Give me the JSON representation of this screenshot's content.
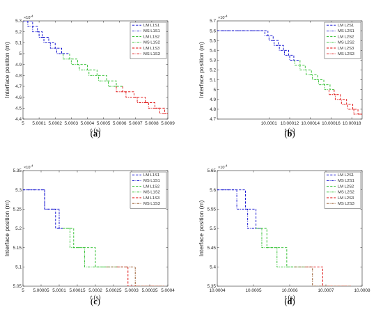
{
  "chart_data": [
    {
      "type": "line",
      "caption_letter": "a",
      "ylabel": "Interface position (m)",
      "xlabel_var": "t",
      "xlabel_unit": " (s)",
      "y_exponent": "-4",
      "xlim": [
        5.0,
        5.0009
      ],
      "ylim": [
        4.4,
        5.3
      ],
      "xticks": [
        5,
        5.0001,
        5.0002,
        5.0003,
        5.0004,
        5.0005,
        5.0006,
        5.0007,
        5.0008,
        5.0009
      ],
      "xtick_labels": [
        "5",
        "5.0001",
        "5.0002",
        "5.0003",
        "5.0004",
        "5.0005",
        "5.0006",
        "5.0007",
        "5.0008",
        "5.0009"
      ],
      "yticks": [
        4.4,
        4.5,
        4.6,
        4.7,
        4.8,
        4.9,
        5.0,
        5.1,
        5.2,
        5.3
      ],
      "ytick_labels": [
        "4.4",
        "4.5",
        "4.6",
        "4.7",
        "4.8",
        "4.9",
        "5",
        "5.1",
        "5.2",
        "5.3"
      ],
      "series": [
        {
          "name": "LM L1S1",
          "color": "#0000cc",
          "dash": "dash",
          "x": [
            5.0,
            5.00006,
            5.00006,
            5.00009,
            5.00009,
            5.00012,
            5.00012,
            5.00016,
            5.00016,
            5.0002,
            5.0002,
            5.00024,
            5.00024,
            5.00029
          ],
          "y": [
            5.3,
            5.3,
            5.25,
            5.25,
            5.2,
            5.2,
            5.15,
            5.15,
            5.1,
            5.1,
            5.05,
            5.05,
            5.0,
            5.0
          ]
        },
        {
          "name": "MS L1S1",
          "color": "#0000cc",
          "dash": "dashdot",
          "x": [
            5.0,
            5.00003,
            5.00003,
            5.00006,
            5.00006,
            5.0001,
            5.0001,
            5.00013,
            5.00013,
            5.00017,
            5.00017,
            5.00021,
            5.00021,
            5.00025
          ],
          "y": [
            5.3,
            5.3,
            5.25,
            5.25,
            5.2,
            5.2,
            5.15,
            5.15,
            5.1,
            5.1,
            5.05,
            5.05,
            5.0,
            5.0
          ]
        },
        {
          "name": "LM L1S2",
          "color": "#22bb22",
          "dash": "dash",
          "x": [
            5.00029,
            5.00029,
            5.00034,
            5.00034,
            5.0004,
            5.0004,
            5.00046,
            5.00046,
            5.00052,
            5.00052,
            5.00058,
            5.00058,
            5.00062
          ],
          "y": [
            5.0,
            4.95,
            4.95,
            4.9,
            4.9,
            4.85,
            4.85,
            4.8,
            4.8,
            4.75,
            4.75,
            4.7,
            4.7
          ]
        },
        {
          "name": "MS L1S2",
          "color": "#22bb22",
          "dash": "dashdot",
          "x": [
            5.00025,
            5.00025,
            5.0003,
            5.0003,
            5.00035,
            5.00035,
            5.00041,
            5.00041,
            5.00047,
            5.00047,
            5.00053,
            5.00053,
            5.00058
          ],
          "y": [
            5.0,
            4.95,
            4.95,
            4.9,
            4.9,
            4.85,
            4.85,
            4.8,
            4.8,
            4.75,
            4.75,
            4.7,
            4.7
          ]
        },
        {
          "name": "LM L1S3",
          "color": "#dd0000",
          "dash": "dash",
          "x": [
            5.00062,
            5.00062,
            5.00069,
            5.00069,
            5.00076,
            5.00076,
            5.00082,
            5.00082,
            5.00088,
            5.00088,
            5.0009
          ],
          "y": [
            4.7,
            4.65,
            4.65,
            4.6,
            4.6,
            4.55,
            4.55,
            4.5,
            4.5,
            4.45,
            4.45
          ]
        },
        {
          "name": "MS L1S3",
          "color": "#dd0000",
          "dash": "dashdot",
          "x": [
            5.00058,
            5.00058,
            5.00064,
            5.00064,
            5.00071,
            5.00071,
            5.00078,
            5.00078,
            5.00085,
            5.00085,
            5.0009
          ],
          "y": [
            4.7,
            4.65,
            4.65,
            4.6,
            4.6,
            4.55,
            4.55,
            4.5,
            4.5,
            4.45,
            4.45
          ]
        }
      ]
    },
    {
      "type": "line",
      "caption_letter": "b",
      "ylabel": "Interface position (m)",
      "xlabel_var": "t",
      "xlabel_unit": " (s)",
      "y_exponent": "-4",
      "xlim": [
        10.00005,
        10.00019
      ],
      "ylim": [
        4.7,
        5.7
      ],
      "xticks": [
        10.0001,
        10.00012,
        10.00014,
        10.00016,
        10.00018
      ],
      "xtick_labels": [
        "10.0001",
        "10.00012",
        "10.00014",
        "10.00016",
        "10.00018"
      ],
      "yticks": [
        4.7,
        4.8,
        4.9,
        5.0,
        5.1,
        5.2,
        5.3,
        5.4,
        5.5,
        5.6,
        5.7
      ],
      "ytick_labels": [
        "4.7",
        "4.8",
        "4.9",
        "5",
        "5.1",
        "5.2",
        "5.3",
        "5.4",
        "5.5",
        "5.6",
        "5.7"
      ],
      "series": [
        {
          "name": "LM L2S1",
          "color": "#0000cc",
          "dash": "dash",
          "x": [
            10.00005,
            10.000099,
            10.000099,
            10.000104,
            10.000104,
            10.000109,
            10.000109,
            10.000114,
            10.000114,
            10.000119,
            10.000119,
            10.000124,
            10.000124,
            10.00013
          ],
          "y": [
            5.6,
            5.6,
            5.55,
            5.55,
            5.5,
            5.5,
            5.45,
            5.45,
            5.4,
            5.4,
            5.35,
            5.35,
            5.3,
            5.3
          ]
        },
        {
          "name": "MS L2S1",
          "color": "#0000cc",
          "dash": "dashdot",
          "x": [
            10.00005,
            10.000096,
            10.000096,
            10.0001,
            10.0001,
            10.000105,
            10.000105,
            10.00011,
            10.00011,
            10.000115,
            10.000115,
            10.00012,
            10.00012,
            10.000125
          ],
          "y": [
            5.6,
            5.6,
            5.55,
            5.55,
            5.5,
            5.5,
            5.45,
            5.45,
            5.4,
            5.4,
            5.35,
            5.35,
            5.3,
            5.3
          ]
        },
        {
          "name": "LM L2S2",
          "color": "#22bb22",
          "dash": "dash",
          "x": [
            10.00013,
            10.00013,
            10.000135,
            10.000135,
            10.000141,
            10.000141,
            10.000147,
            10.000147,
            10.000153,
            10.000153,
            10.000159,
            10.000159,
            10.000163
          ],
          "y": [
            5.3,
            5.25,
            5.25,
            5.2,
            5.2,
            5.15,
            5.15,
            5.1,
            5.1,
            5.05,
            5.05,
            5.0,
            5.0
          ]
        },
        {
          "name": "MS L2S2",
          "color": "#22bb22",
          "dash": "dashdot",
          "x": [
            10.000125,
            10.000125,
            10.00013,
            10.00013,
            10.000136,
            10.000136,
            10.000142,
            10.000142,
            10.000148,
            10.000148,
            10.000154,
            10.000154,
            10.000158
          ],
          "y": [
            5.3,
            5.25,
            5.25,
            5.2,
            5.2,
            5.15,
            5.15,
            5.1,
            5.1,
            5.05,
            5.05,
            5.0,
            5.0
          ]
        },
        {
          "name": "LM L2S3",
          "color": "#dd0000",
          "dash": "dash",
          "x": [
            10.000163,
            10.000163,
            10.000169,
            10.000169,
            10.000175,
            10.000175,
            10.000181,
            10.000181,
            10.000186,
            10.000186,
            10.00019
          ],
          "y": [
            5.0,
            4.95,
            4.95,
            4.9,
            4.9,
            4.85,
            4.85,
            4.8,
            4.8,
            4.75,
            4.75
          ]
        },
        {
          "name": "MS L2S3",
          "color": "#dd0000",
          "dash": "dashdot",
          "x": [
            10.000158,
            10.000158,
            10.000164,
            10.000164,
            10.00017,
            10.00017,
            10.000176,
            10.000176,
            10.000182,
            10.000182,
            10.00019
          ],
          "y": [
            5.0,
            4.95,
            4.95,
            4.9,
            4.9,
            4.85,
            4.85,
            4.8,
            4.8,
            4.75,
            4.75
          ]
        }
      ]
    },
    {
      "type": "line",
      "caption_letter": "c",
      "ylabel": "Interface position (m)",
      "xlabel_var": "t",
      "xlabel_unit": " (s)",
      "y_exponent": "-4",
      "xlim": [
        5.0,
        5.0004
      ],
      "ylim": [
        5.05,
        5.35
      ],
      "xticks": [
        5,
        5.00005,
        5.0001,
        5.00015,
        5.0002,
        5.00025,
        5.0003,
        5.00035,
        5.0004
      ],
      "xtick_labels": [
        "5",
        "5.00005",
        "5.0001",
        "5.00015",
        "5.0002",
        "5.00025",
        "5.0003",
        "5.00035",
        "5.0004"
      ],
      "yticks": [
        5.05,
        5.1,
        5.15,
        5.2,
        5.25,
        5.3,
        5.35
      ],
      "ytick_labels": [
        "5.05",
        "5.1",
        "5.15",
        "5.2",
        "5.25",
        "5.3",
        "5.35"
      ],
      "series": [
        {
          "name": "LM L1S1",
          "color": "#0000cc",
          "dash": "dash",
          "x": [
            5.0,
            5.00006,
            5.00006,
            5.00009,
            5.00009,
            5.00011,
            5.00011
          ],
          "y": [
            5.3,
            5.3,
            5.25,
            5.25,
            5.2,
            5.2,
            5.2
          ]
        },
        {
          "name": "MS L1S1",
          "color": "#0000cc",
          "dash": "dashdot",
          "x": [
            5.0,
            5.00006,
            5.00006,
            5.0001,
            5.0001,
            5.00011
          ],
          "y": [
            5.3,
            5.3,
            5.25,
            5.25,
            5.2,
            5.2
          ]
        },
        {
          "name": "LM L1S2",
          "color": "#22bb22",
          "dash": "dash",
          "x": [
            5.00011,
            5.00014,
            5.00014,
            5.0002,
            5.0002,
            5.00026,
            5.00026
          ],
          "y": [
            5.2,
            5.2,
            5.15,
            5.15,
            5.1,
            5.1,
            5.1
          ]
        },
        {
          "name": "MS L1S2",
          "color": "#22bb22",
          "dash": "dashdot",
          "x": [
            5.00011,
            5.00013,
            5.00013,
            5.00017,
            5.00017,
            5.00023,
            5.00023
          ],
          "y": [
            5.2,
            5.2,
            5.15,
            5.15,
            5.1,
            5.1,
            5.1
          ]
        },
        {
          "name": "LM L1S3",
          "color": "#dd0000",
          "dash": "dash",
          "x": [
            5.00026,
            5.00029,
            5.00029,
            5.00036,
            5.00036,
            5.00039
          ],
          "y": [
            5.1,
            5.1,
            5.05,
            5.05,
            5.05,
            5.05
          ]
        },
        {
          "name": "MS L1S3",
          "color": "#8b4513",
          "dash": "dashdot",
          "x": [
            5.00023,
            5.00031,
            5.00031,
            5.00039
          ],
          "y": [
            5.1,
            5.1,
            5.05,
            5.05
          ]
        }
      ]
    },
    {
      "type": "line",
      "caption_letter": "d",
      "ylabel": "Interface position (m)",
      "xlabel_var": "t",
      "xlabel_unit": " (s)",
      "y_exponent": "-4",
      "xlim": [
        10.0004,
        10.0008
      ],
      "ylim": [
        5.35,
        5.65
      ],
      "xticks": [
        10.0004,
        10.0005,
        10.0006,
        10.0007,
        10.0008
      ],
      "xtick_labels": [
        "10.0004",
        "10.0005",
        "10.0006",
        "10.0007",
        "10.0008"
      ],
      "yticks": [
        5.35,
        5.4,
        5.45,
        5.5,
        5.55,
        5.6,
        5.65
      ],
      "ytick_labels": [
        "5.35",
        "5.4",
        "5.45",
        "5.5",
        "5.55",
        "5.6",
        "5.65"
      ],
      "series": [
        {
          "name": "LM L2S1",
          "color": "#0000cc",
          "dash": "dash",
          "x": [
            10.0004,
            10.000478,
            10.000478,
            10.000507,
            10.000507,
            10.00052,
            10.00052
          ],
          "y": [
            5.6,
            5.6,
            5.55,
            5.55,
            5.5,
            5.5,
            5.5
          ]
        },
        {
          "name": "MS L2S1",
          "color": "#0000cc",
          "dash": "dashdot",
          "x": [
            10.0004,
            10.000454,
            10.000454,
            10.000484,
            10.000484,
            10.000507
          ],
          "y": [
            5.6,
            5.6,
            5.55,
            5.55,
            5.5,
            5.5
          ]
        },
        {
          "name": "LM L2S2",
          "color": "#22bb22",
          "dash": "dash",
          "x": [
            10.00052,
            10.000537,
            10.000537,
            10.000592,
            10.000592,
            10.000646,
            10.000646
          ],
          "y": [
            5.5,
            5.5,
            5.45,
            5.45,
            5.4,
            5.4,
            5.4
          ]
        },
        {
          "name": "MS L2S2",
          "color": "#22bb22",
          "dash": "dashdot",
          "x": [
            10.000507,
            10.000523,
            10.000523,
            10.000565,
            10.000565,
            10.000613,
            10.000613
          ],
          "y": [
            5.5,
            5.5,
            5.45,
            5.45,
            5.4,
            5.4,
            5.4
          ]
        },
        {
          "name": "LM L2S3",
          "color": "#dd0000",
          "dash": "dash",
          "x": [
            10.000646,
            10.000691,
            10.000691,
            10.000757,
            10.000757,
            10.00077
          ],
          "y": [
            5.4,
            5.4,
            5.35,
            5.35,
            5.35,
            5.35
          ]
        },
        {
          "name": "MS L2S3",
          "color": "#8b4513",
          "dash": "dashdot",
          "x": [
            10.000613,
            10.000663,
            10.000663,
            10.00077
          ],
          "y": [
            5.4,
            5.4,
            5.35,
            5.35
          ]
        }
      ]
    }
  ]
}
